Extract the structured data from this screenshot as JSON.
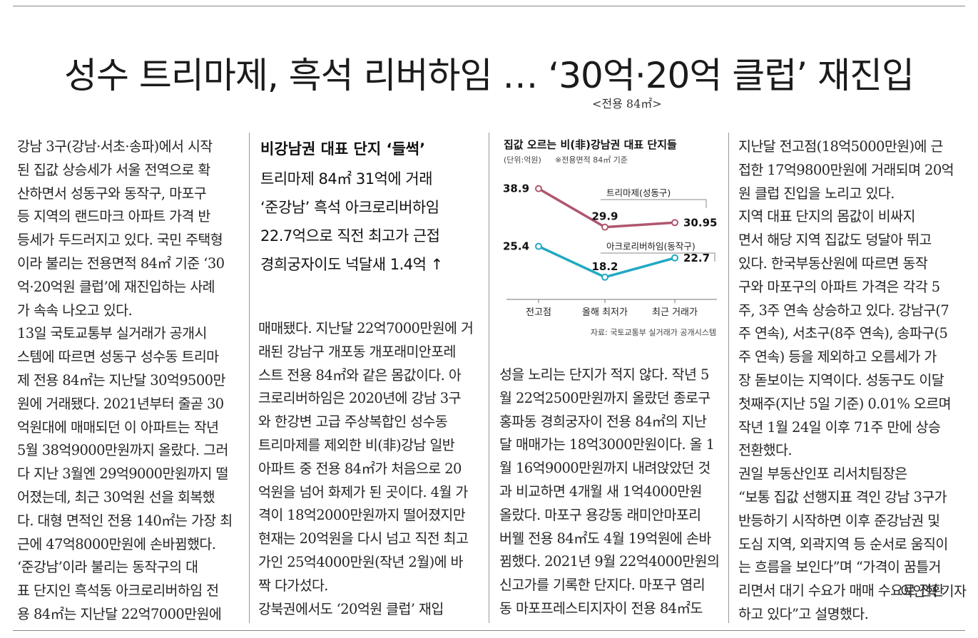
{
  "headline": "성수 트리마제, 흑석 리버하임 … ‘30억·20억 클럽’ 재진입",
  "unit_note": "<전용 84㎡>",
  "subheads": {
    "kicker": "비강남권 대표 단지 ‘들썩’",
    "lines": [
      "트리마제 84㎡ 31억에 거래",
      "‘준강남’ 흑석 아크로리버하임",
      "22.7억으로 직전 최고가 근접",
      "경희궁자이도 넉달새 1.4억 ↑"
    ]
  },
  "columns": {
    "col1": [
      "강남 3구(강남·서초·송파)에서 시작",
      "된 집값 상승세가 서울 전역으로 확",
      "산하면서 성동구와 동작구, 마포구",
      "등 지역의 랜드마크 아파트 가격 반",
      "등세가 두드러지고 있다. 국민 주택형",
      "이라 불리는 전용면적 84㎡ 기준 ‘30",
      "억·20억원 클럽’에 재진입하는 사례",
      "가 속속 나오고 있다.",
      "  13일 국토교통부 실거래가 공개시",
      "스템에 따르면 성동구 성수동 트리마",
      "제 전용 84㎡는 지난달 30억9500만",
      "원에 거래됐다. 2021년부터 줄곧 30",
      "억원대에 매매되던 이 아파트는 작년",
      "5월 38억9000만원까지 올랐다. 그러",
      "다 지난 3월엔 29억9000만원까지 떨",
      "어졌는데, 최근 30억원 선을 회복했",
      "다. 대형 면적인 전용 140㎡는 가장 최",
      "근에 47억8000만원에 손바뀜했다.",
      "  ‘준강남’이라 불리는 동작구의 대",
      "표 단지인 흑석동 아크로리버하임 전",
      "용 84㎡는 지난달 22억7000만원에"
    ],
    "col2": [
      "매매됐다. 지난달 22억7000만원에 거",
      "래된 강남구 개포동 개포래미안포레",
      "스트 전용 84㎡와 같은 몸값이다. 아",
      "크로리버하임은 2020년에 강남 3구",
      "와 한강변 고급 주상복합인 성수동",
      "트리마제를 제외한 비(非)강남 일반",
      "아파트 중 전용 84㎡가 처음으로 20",
      "억원을 넘어 화제가 된 곳이다. 4월 가",
      "격이 18억2000만원까지 떨어졌지만",
      "현재는 20억원을 다시 넘고 직전 최고",
      "가인 25억4000만원(작년 2월)에 바",
      "짝 다가섰다.",
      "  강북권에서도 ‘20억원 클럽’ 재입"
    ],
    "col3": [
      "성을 노리는 단지가 적지 않다. 작년 5",
      "월 22억2500만원까지 올랐던 종로구",
      "홍파동 경희궁자이 전용 84㎡의 지난",
      "달 매매가는 18억3000만원이다. 올 1",
      "월 16억9000만원까지 내려앉았던 것",
      "과 비교하면 4개월 새 1억4000만원",
      "올랐다. 마포구 용강동 래미안마포리",
      "버웰 전용 84㎡도 4월 19억원에 손바",
      "뀜했다. 2021년 9월 22억4000만원의",
      "신고가를 기록한 단지다. 마포구 염리",
      "동 마포프레스티지자이 전용 84㎡도"
    ],
    "col4": [
      "지난달 전고점(18억5000만원)에 근",
      "접한 17억9800만원에 거래되며 20억",
      "원 클럽 진입을 노리고 있다.",
      "  지역 대표 단지의 몸값이 비싸지",
      "면서 해당 지역 집값도 덩달아 뛰고",
      "있다. 한국부동산원에 따르면 동작",
      "구와 마포구의 아파트 가격은 각각 5",
      "주, 3주 연속 상승하고 있다. 강남구(7",
      "주 연속), 서초구(8주 연속), 송파구(5",
      "주 연속) 등을 제외하고 오름세가 가",
      "장 돋보이는 지역이다. 성동구도 이달",
      "첫째주(지난 5일 기준) 0.01% 오르며",
      "작년 1월 24일 이후 71주 만에 상승",
      "전환했다.",
      "  권일 부동산인포 리서치팀장은",
      "“보통 집값 선행지표 격인 강남 3구가",
      "반등하기 시작하면 이후 준강남권 및",
      "도심 지역, 외곽지역 등 순서로 움직이",
      "는 흐름을 보인다”며 “가격이 꿈틀거",
      "리면서 대기 수요가 매매 수요로 전환",
      "하고 있다”고 설명했다."
    ],
    "byline": "이인혁 기자"
  },
  "chart_data": {
    "type": "line",
    "title": "집값 오르는 비(非)강남권 대표 단지들",
    "unit": "(단위:억원)",
    "note": "※전용면적 84㎡ 기준",
    "categories": [
      "전고점",
      "올해 최저가",
      "최근 거래가"
    ],
    "series": [
      {
        "name": "트리마제(성동구)",
        "values": [
          38.9,
          29.9,
          30.95
        ],
        "color": "#b0566e"
      },
      {
        "name": "아크로리버하임(동작구)",
        "values": [
          25.4,
          18.2,
          22.7
        ],
        "color": "#1fa9c2"
      }
    ],
    "source": "자료: 국토교통부 실거래가 공개시스템"
  }
}
